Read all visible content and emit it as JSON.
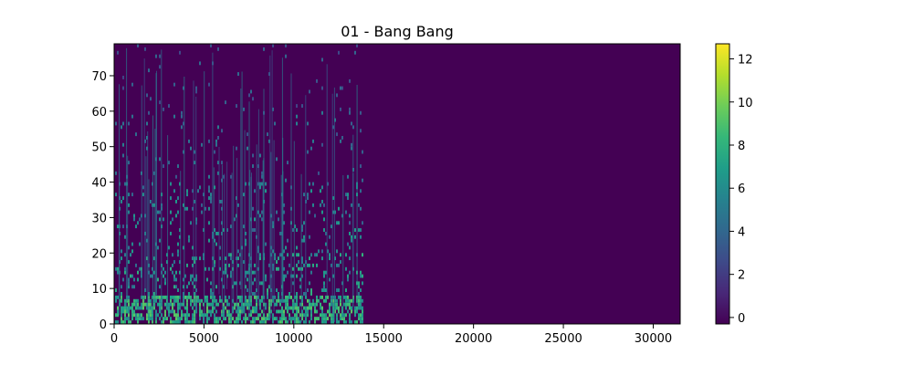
{
  "chart_data": {
    "type": "heatmap",
    "title": "01 - Bang Bang",
    "xlabel": "",
    "ylabel": "",
    "xlim": [
      0,
      31500
    ],
    "ylim": [
      0,
      79
    ],
    "x_ticks": [
      "0",
      "5000",
      "10000",
      "15000",
      "20000",
      "25000",
      "30000"
    ],
    "y_ticks": [
      "0",
      "10",
      "20",
      "30",
      "40",
      "50",
      "60",
      "70"
    ],
    "signal_end_x": 13800,
    "colorbar": {
      "range": [
        -0.3,
        12.7
      ],
      "ticks": [
        "0",
        "2",
        "4",
        "6",
        "8",
        "10",
        "12"
      ]
    },
    "colormap": "viridis",
    "background_color": "#440154",
    "grid": false
  }
}
